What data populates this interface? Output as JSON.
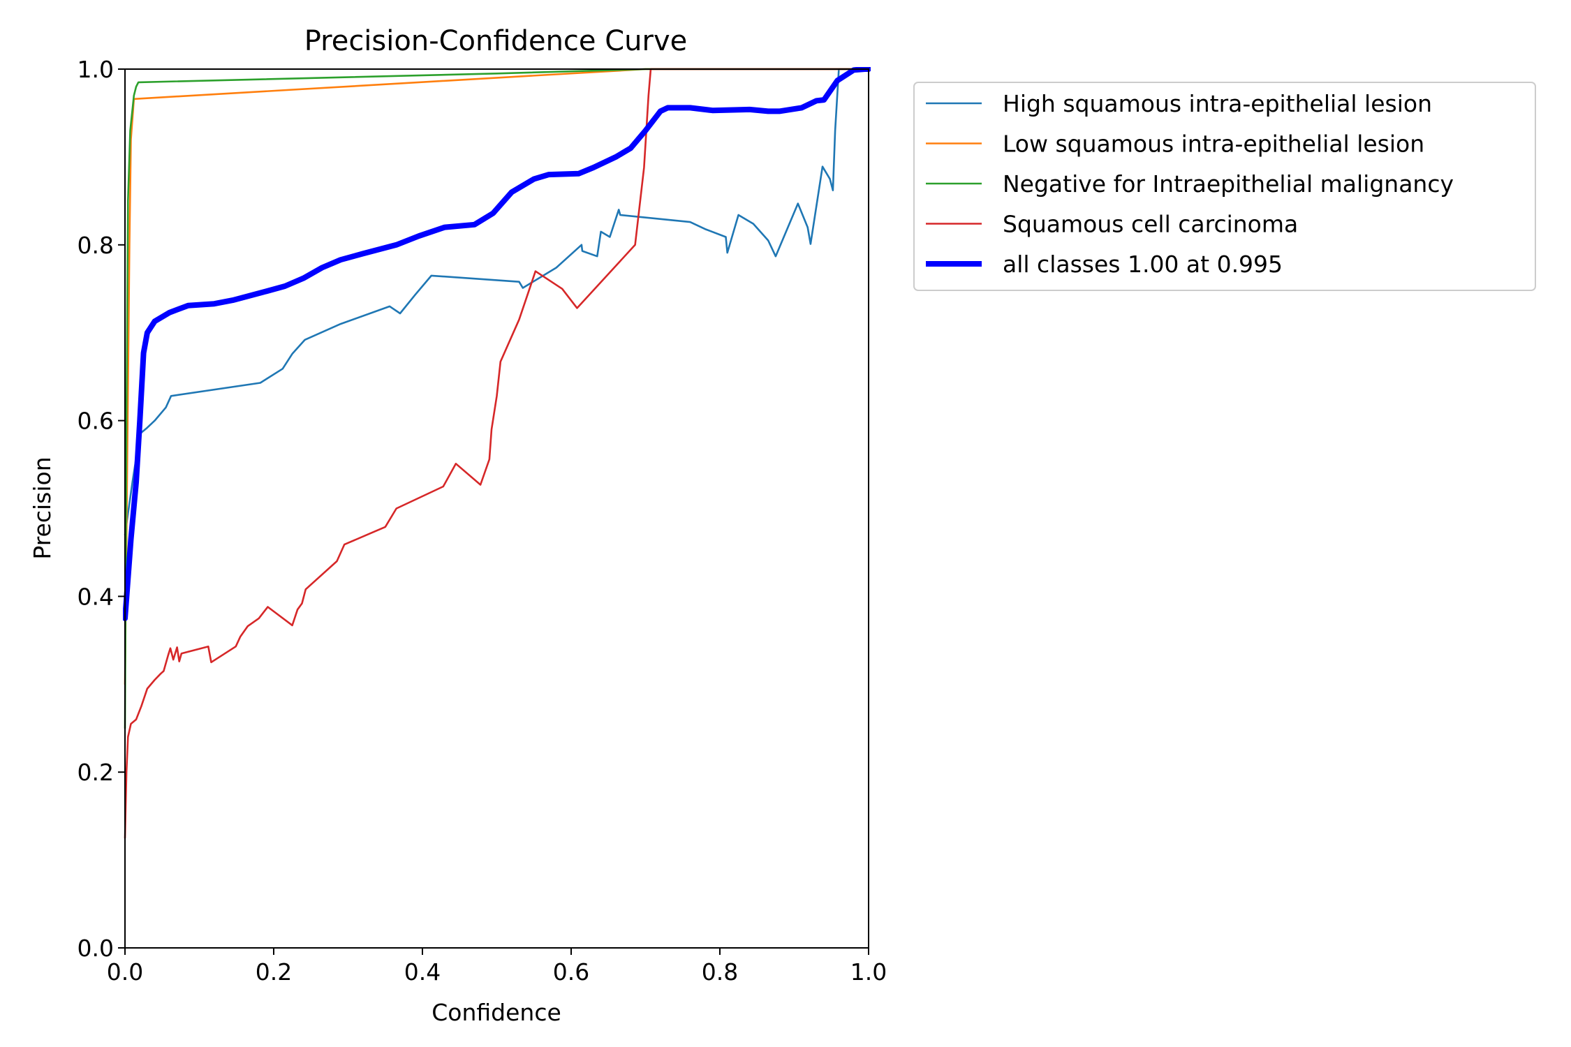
{
  "chart_data": {
    "type": "line",
    "title": "Precision-Confidence Curve",
    "xlabel": "Confidence",
    "ylabel": "Precision",
    "xlim": [
      0,
      1
    ],
    "ylim": [
      0,
      1
    ],
    "xticks": [
      "0.0",
      "0.2",
      "0.4",
      "0.6",
      "0.8",
      "1.0"
    ],
    "yticks": [
      "0.0",
      "0.2",
      "0.4",
      "0.6",
      "0.8",
      "1.0"
    ],
    "grid": false,
    "legend_position": "outside-top-right",
    "series": [
      {
        "name": "High squamous intra-epithelial lesion",
        "color": "#1f77b4",
        "width": "thin",
        "points": [
          [
            0.0,
            0.47
          ],
          [
            0.01,
            0.53
          ],
          [
            0.02,
            0.585
          ],
          [
            0.03,
            0.592
          ],
          [
            0.04,
            0.6
          ],
          [
            0.055,
            0.615
          ],
          [
            0.062,
            0.628
          ],
          [
            0.182,
            0.643
          ],
          [
            0.212,
            0.659
          ],
          [
            0.225,
            0.676
          ],
          [
            0.242,
            0.692
          ],
          [
            0.29,
            0.71
          ],
          [
            0.356,
            0.73
          ],
          [
            0.37,
            0.722
          ],
          [
            0.39,
            0.743
          ],
          [
            0.412,
            0.765
          ],
          [
            0.53,
            0.758
          ],
          [
            0.535,
            0.751
          ],
          [
            0.58,
            0.774
          ],
          [
            0.614,
            0.8
          ],
          [
            0.615,
            0.793
          ],
          [
            0.635,
            0.787
          ],
          [
            0.64,
            0.815
          ],
          [
            0.652,
            0.809
          ],
          [
            0.664,
            0.84
          ],
          [
            0.666,
            0.834
          ],
          [
            0.76,
            0.826
          ],
          [
            0.78,
            0.818
          ],
          [
            0.808,
            0.809
          ],
          [
            0.81,
            0.791
          ],
          [
            0.825,
            0.834
          ],
          [
            0.845,
            0.824
          ],
          [
            0.865,
            0.805
          ],
          [
            0.875,
            0.787
          ],
          [
            0.905,
            0.847
          ],
          [
            0.918,
            0.82
          ],
          [
            0.922,
            0.801
          ],
          [
            0.938,
            0.889
          ],
          [
            0.948,
            0.875
          ],
          [
            0.952,
            0.862
          ],
          [
            0.955,
            0.93
          ],
          [
            0.96,
            1.0
          ],
          [
            1.0,
            1.0
          ]
        ]
      },
      {
        "name": "Low squamous intra-epithelial lesion",
        "color": "#ff7f0e",
        "width": "thin",
        "points": [
          [
            0.0,
            0.3
          ],
          [
            0.003,
            0.55
          ],
          [
            0.006,
            0.8
          ],
          [
            0.008,
            0.92
          ],
          [
            0.012,
            0.966
          ],
          [
            0.7,
            1.0
          ],
          [
            1.0,
            1.0
          ]
        ]
      },
      {
        "name": "Negative for Intraepithelial malignancy",
        "color": "#2ca02c",
        "width": "thin",
        "points": [
          [
            0.0,
            0.25
          ],
          [
            0.002,
            0.6
          ],
          [
            0.004,
            0.85
          ],
          [
            0.007,
            0.93
          ],
          [
            0.012,
            0.97
          ],
          [
            0.015,
            0.98
          ],
          [
            0.018,
            0.985
          ],
          [
            0.5,
            0.995
          ],
          [
            0.7,
            1.0
          ],
          [
            1.0,
            1.0
          ]
        ]
      },
      {
        "name": "Squamous cell carcinoma",
        "color": "#d62728",
        "width": "thin",
        "points": [
          [
            0.0,
            0.125
          ],
          [
            0.002,
            0.2
          ],
          [
            0.004,
            0.24
          ],
          [
            0.008,
            0.255
          ],
          [
            0.015,
            0.26
          ],
          [
            0.022,
            0.275
          ],
          [
            0.03,
            0.295
          ],
          [
            0.04,
            0.305
          ],
          [
            0.048,
            0.312
          ],
          [
            0.052,
            0.315
          ],
          [
            0.058,
            0.333
          ],
          [
            0.061,
            0.341
          ],
          [
            0.065,
            0.328
          ],
          [
            0.07,
            0.342
          ],
          [
            0.073,
            0.326
          ],
          [
            0.076,
            0.335
          ],
          [
            0.112,
            0.343
          ],
          [
            0.116,
            0.325
          ],
          [
            0.149,
            0.343
          ],
          [
            0.155,
            0.354
          ],
          [
            0.165,
            0.366
          ],
          [
            0.18,
            0.375
          ],
          [
            0.192,
            0.388
          ],
          [
            0.225,
            0.367
          ],
          [
            0.232,
            0.385
          ],
          [
            0.238,
            0.392
          ],
          [
            0.243,
            0.408
          ],
          [
            0.285,
            0.44
          ],
          [
            0.295,
            0.459
          ],
          [
            0.35,
            0.479
          ],
          [
            0.365,
            0.5
          ],
          [
            0.428,
            0.525
          ],
          [
            0.445,
            0.551
          ],
          [
            0.478,
            0.527
          ],
          [
            0.49,
            0.556
          ],
          [
            0.493,
            0.59
          ],
          [
            0.5,
            0.628
          ],
          [
            0.505,
            0.667
          ],
          [
            0.53,
            0.715
          ],
          [
            0.552,
            0.77
          ],
          [
            0.588,
            0.75
          ],
          [
            0.608,
            0.728
          ],
          [
            0.686,
            0.8
          ],
          [
            0.698,
            0.888
          ],
          [
            0.704,
            0.97
          ],
          [
            0.707,
            1.0
          ],
          [
            1.0,
            1.0
          ]
        ]
      },
      {
        "name": "all classes 1.00 at 0.995",
        "color": "#0000ff",
        "width": "thick",
        "points": [
          [
            0.0,
            0.375
          ],
          [
            0.008,
            0.465
          ],
          [
            0.015,
            0.53
          ],
          [
            0.02,
            0.6
          ],
          [
            0.025,
            0.677
          ],
          [
            0.03,
            0.7
          ],
          [
            0.04,
            0.713
          ],
          [
            0.06,
            0.723
          ],
          [
            0.085,
            0.731
          ],
          [
            0.12,
            0.733
          ],
          [
            0.145,
            0.737
          ],
          [
            0.185,
            0.746
          ],
          [
            0.215,
            0.753
          ],
          [
            0.24,
            0.762
          ],
          [
            0.265,
            0.774
          ],
          [
            0.29,
            0.783
          ],
          [
            0.32,
            0.79
          ],
          [
            0.365,
            0.8
          ],
          [
            0.395,
            0.81
          ],
          [
            0.43,
            0.82
          ],
          [
            0.47,
            0.823
          ],
          [
            0.495,
            0.836
          ],
          [
            0.52,
            0.86
          ],
          [
            0.55,
            0.875
          ],
          [
            0.57,
            0.88
          ],
          [
            0.61,
            0.881
          ],
          [
            0.63,
            0.888
          ],
          [
            0.66,
            0.9
          ],
          [
            0.68,
            0.91
          ],
          [
            0.7,
            0.93
          ],
          [
            0.72,
            0.952
          ],
          [
            0.73,
            0.956
          ],
          [
            0.76,
            0.956
          ],
          [
            0.79,
            0.953
          ],
          [
            0.84,
            0.954
          ],
          [
            0.865,
            0.952
          ],
          [
            0.88,
            0.952
          ],
          [
            0.91,
            0.956
          ],
          [
            0.93,
            0.964
          ],
          [
            0.94,
            0.965
          ],
          [
            0.958,
            0.987
          ],
          [
            0.98,
            0.999
          ],
          [
            0.995,
            1.0
          ],
          [
            1.0,
            1.0
          ]
        ]
      }
    ]
  }
}
